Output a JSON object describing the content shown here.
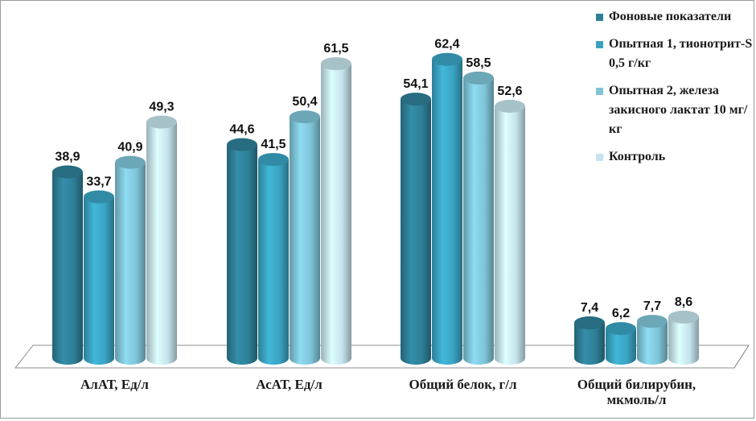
{
  "chart_data": {
    "type": "bar",
    "categories": [
      "АлАТ,  Ед/л",
      "АсАТ,  Ед/л",
      "Общий белок, г/л",
      "Общий билирубин,\nмкмоль/л"
    ],
    "series": [
      {
        "name": "Фоновые показатели",
        "values": [
          38.9,
          44.6,
          54.1,
          7.4
        ],
        "labels": [
          "38,9",
          "44,6",
          "54,1",
          "7,4"
        ],
        "color": "#2e7f97"
      },
      {
        "name": "Опытная 1, тионотрит-S 0,5 г/кг",
        "values": [
          33.7,
          41.5,
          62.4,
          6.2
        ],
        "labels": [
          "33,7",
          "41,5",
          "62,4",
          "6,2"
        ],
        "color": "#3aa3c2"
      },
      {
        "name": "Опытная 2, железа закисного лактат 10 мг/кг",
        "values": [
          40.9,
          50.4,
          58.5,
          7.7
        ],
        "labels": [
          "40,9",
          "50,4",
          "58,5",
          "7,7"
        ],
        "color": "#7fc4d8"
      },
      {
        "name": "Контроль",
        "values": [
          49.3,
          61.5,
          52.6,
          8.6
        ],
        "labels": [
          "49,3",
          "61,5",
          "52,6",
          "8,6"
        ],
        "color": "#c4e3ec"
      }
    ],
    "ylim": [
      0,
      70
    ],
    "grid": false,
    "legend_position": "right"
  }
}
